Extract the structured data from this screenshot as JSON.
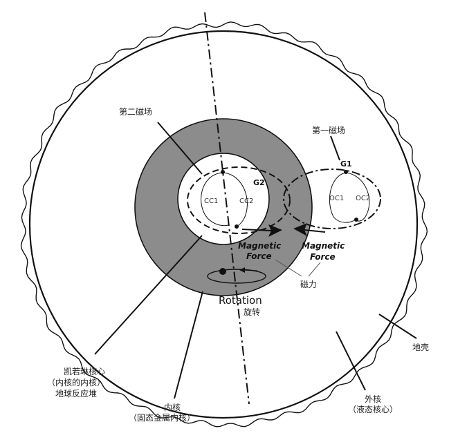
{
  "labels": {
    "second_field": "第二磁场",
    "first_field": "第一磁场",
    "g1": "G1",
    "g2": "G2",
    "cc1": "CC1",
    "cc2": "CC2",
    "oc1": "OC1",
    "oc2": "OC2",
    "magnetic_force_left": [
      "Magnetic",
      "Force"
    ],
    "magnetic_force_right": [
      "Magnetic",
      "Force"
    ],
    "magnetic_force_zh": "磁力",
    "rotation": "Rotation",
    "rotation_zh": "旋转",
    "crust": "地壳",
    "outer_core": [
      "外核",
      "（液态核心）"
    ],
    "inner_core": [
      "内核",
      "（固态金属内核）"
    ],
    "kerrin_core": [
      "凯若琳核心",
      "（内核的内核）",
      "地球反应堆"
    ]
  },
  "colors": {
    "line": "#111111",
    "inner_core_fill": "#8c8c8c",
    "background": "#ffffff"
  }
}
